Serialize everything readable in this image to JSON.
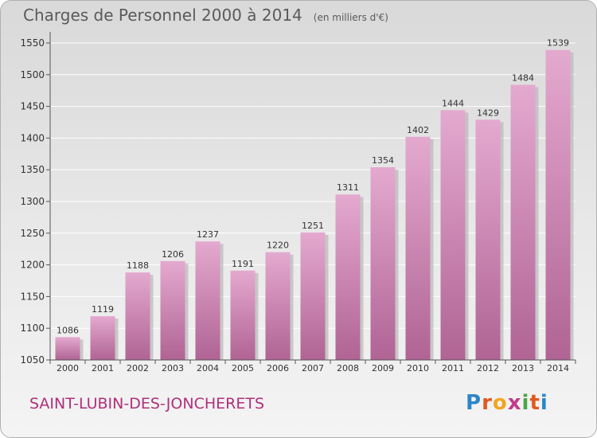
{
  "title": "Charges de Personnel 2000 à 2014",
  "subtitle": "(en milliers d'€)",
  "commune": "SAINT-LUBIN-DES-JONCHERETS",
  "logo": {
    "letters": [
      "P",
      "r",
      "o",
      "x",
      "i",
      "t",
      "i"
    ],
    "colors": [
      "#2c86c8",
      "#e05a1e",
      "#f2a51e",
      "#c43a8a",
      "#4aa548",
      "#e05a1e",
      "#2c86c8"
    ]
  },
  "colors": {
    "bar_top": "#e4a9cf",
    "bar_bottom": "#b06494",
    "shadow": "#b8b8b8",
    "axis": "#555555",
    "grid": "#ffffff",
    "text": "#333333"
  },
  "chart_data": {
    "type": "bar",
    "categories": [
      "2000",
      "2001",
      "2002",
      "2003",
      "2004",
      "2005",
      "2006",
      "2007",
      "2008",
      "2009",
      "2010",
      "2011",
      "2012",
      "2013",
      "2014"
    ],
    "values": [
      1086,
      1119,
      1188,
      1206,
      1237,
      1191,
      1220,
      1251,
      1311,
      1354,
      1402,
      1444,
      1429,
      1484,
      1539
    ],
    "title": "Charges de Personnel 2000 à 2014",
    "subtitle": "(en milliers d'€)",
    "xlabel": "",
    "ylabel": "",
    "ylim": [
      1050,
      1560
    ],
    "yticks": [
      1050,
      1100,
      1150,
      1200,
      1250,
      1300,
      1350,
      1400,
      1450,
      1500,
      1550
    ],
    "grid": true,
    "legend": "none"
  }
}
